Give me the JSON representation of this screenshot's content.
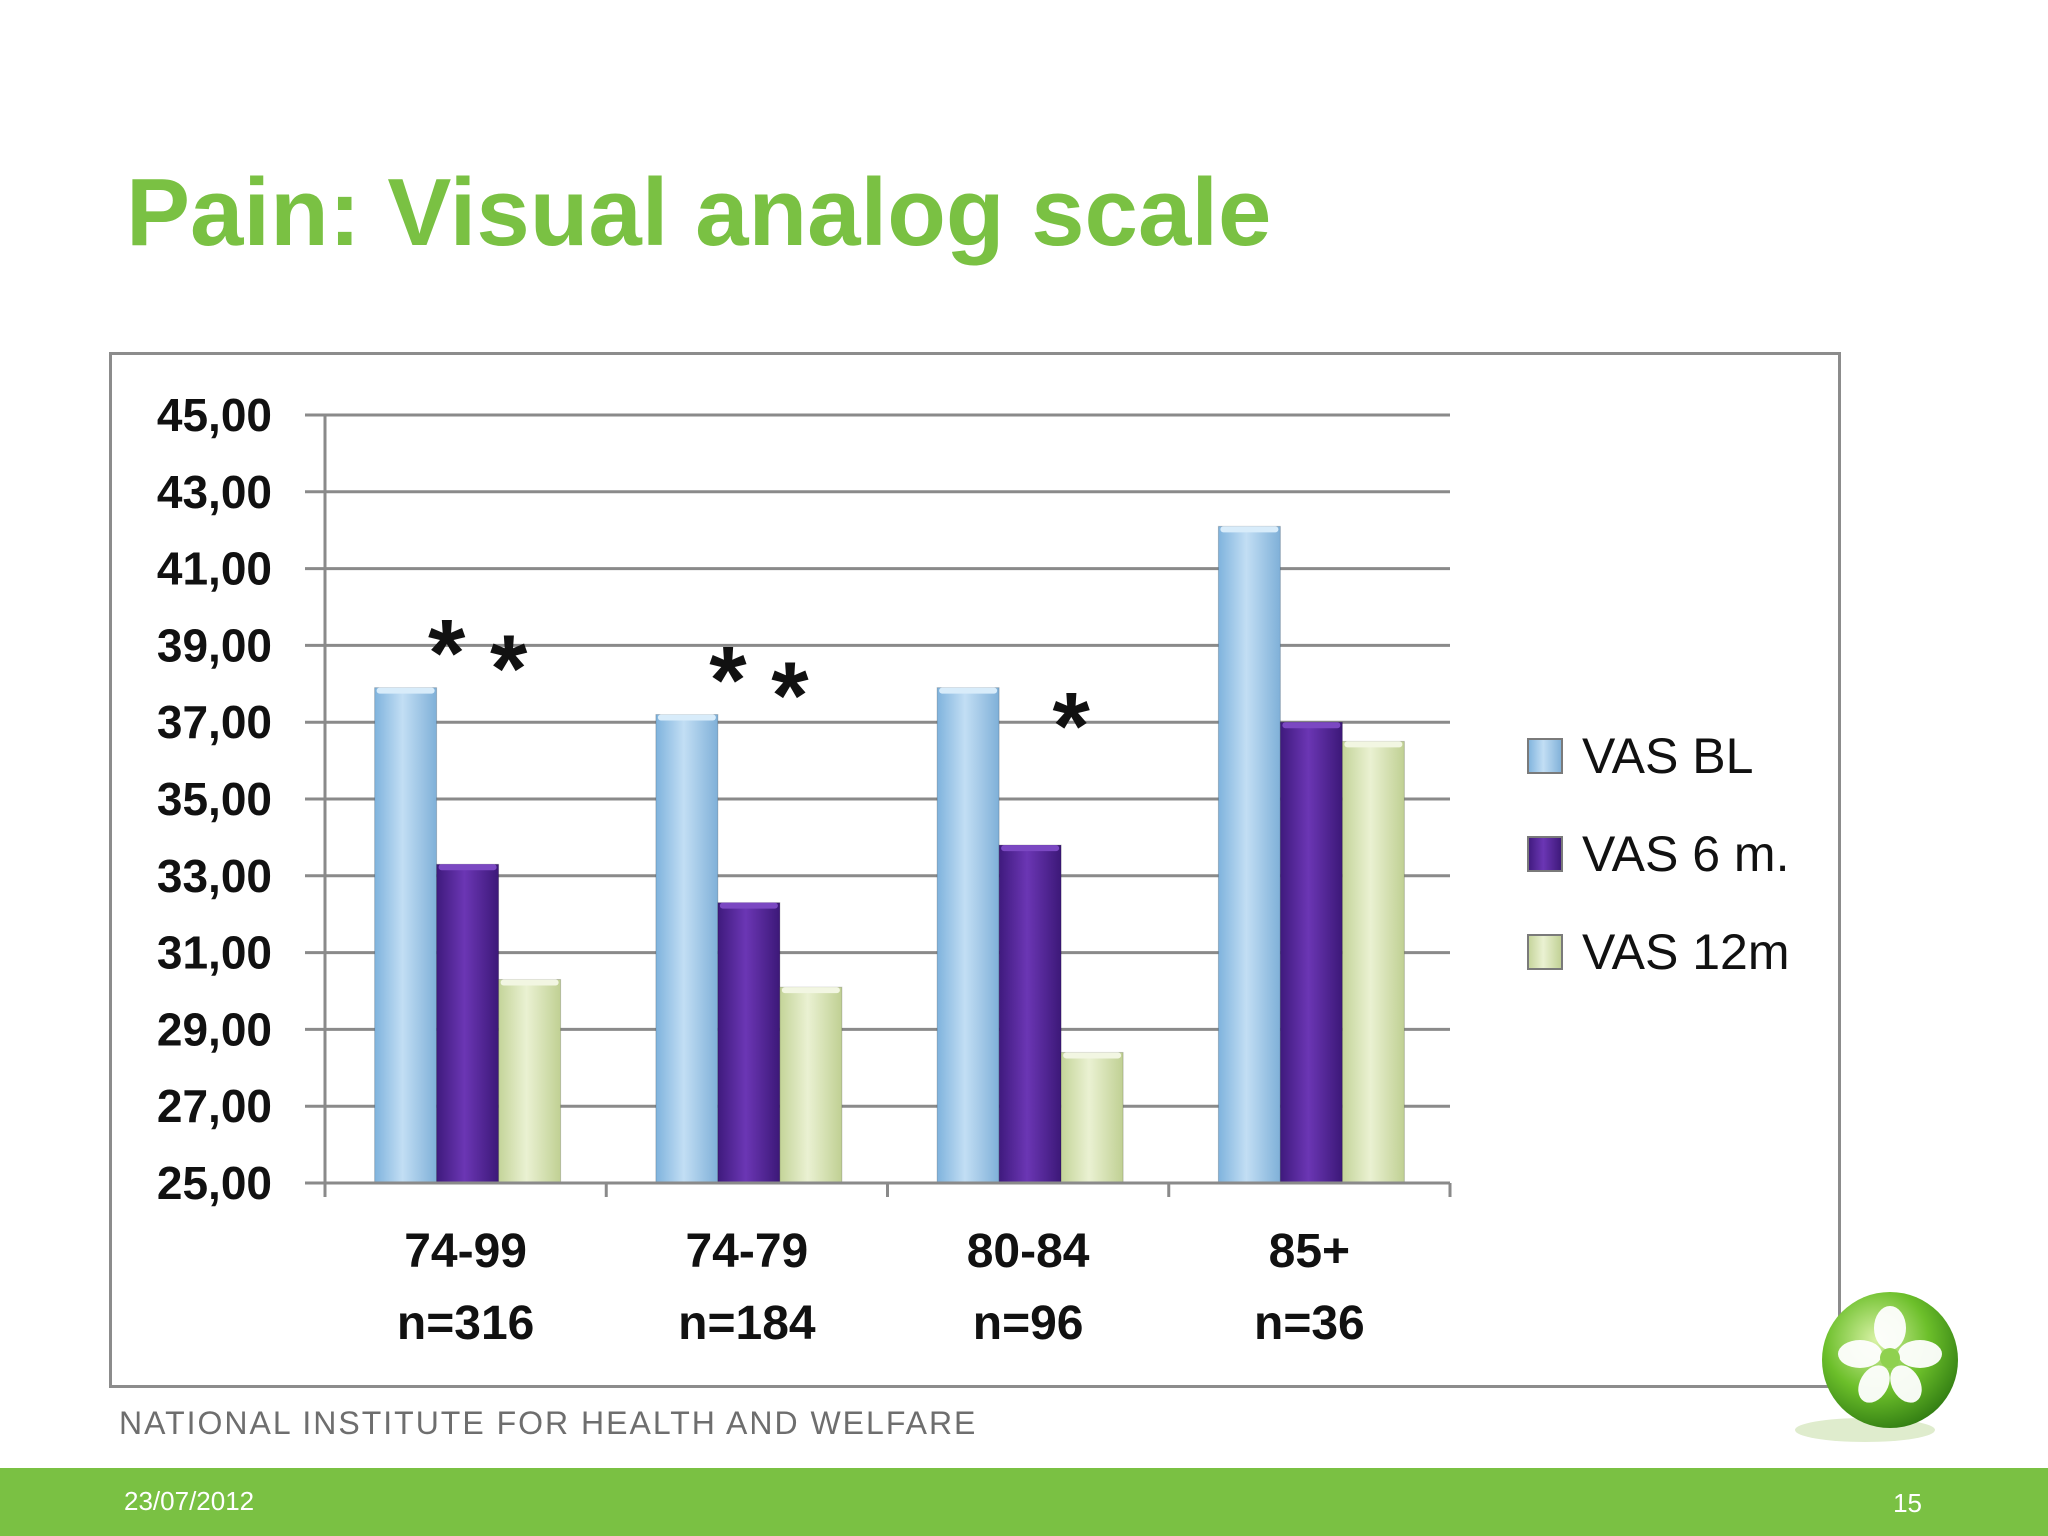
{
  "slide": {
    "title": "Pain: Visual analog scale",
    "institute": "NATIONAL INSTITUTE FOR HEALTH AND WELFARE",
    "date": "23/07/2012",
    "page_number": "15"
  },
  "colors": {
    "accent": "#7ac143",
    "series": [
      "#9ec9ea",
      "#5a2a9e",
      "#d7e3b2"
    ]
  },
  "chart_data": {
    "type": "bar",
    "title": "",
    "xlabel": "",
    "ylabel": "",
    "ylim": [
      25,
      45
    ],
    "y_ticks": [
      "25,00",
      "27,00",
      "29,00",
      "31,00",
      "33,00",
      "35,00",
      "37,00",
      "39,00",
      "41,00",
      "43,00",
      "45,00"
    ],
    "categories": [
      "74-99",
      "74-79",
      "80-84",
      "85+"
    ],
    "category_n": [
      "n=316",
      "n=184",
      "n=96",
      "n=36"
    ],
    "series": [
      {
        "name": "VAS BL",
        "values": [
          37.9,
          37.2,
          37.9,
          42.1
        ]
      },
      {
        "name": "VAS 6 m.",
        "values": [
          33.3,
          32.3,
          33.8,
          37.0
        ]
      },
      {
        "name": "VAS 12m",
        "values": [
          30.3,
          30.1,
          28.4,
          36.5
        ]
      }
    ],
    "grid": true,
    "legend_position": "right",
    "annotations": [
      {
        "text": "*",
        "category": 0,
        "series": 1
      },
      {
        "text": "*",
        "category": 0,
        "series": 2
      },
      {
        "text": "*",
        "category": 1,
        "series": 1
      },
      {
        "text": "*",
        "category": 1,
        "series": 2
      },
      {
        "text": "*",
        "category": 2,
        "series": 2
      }
    ]
  }
}
